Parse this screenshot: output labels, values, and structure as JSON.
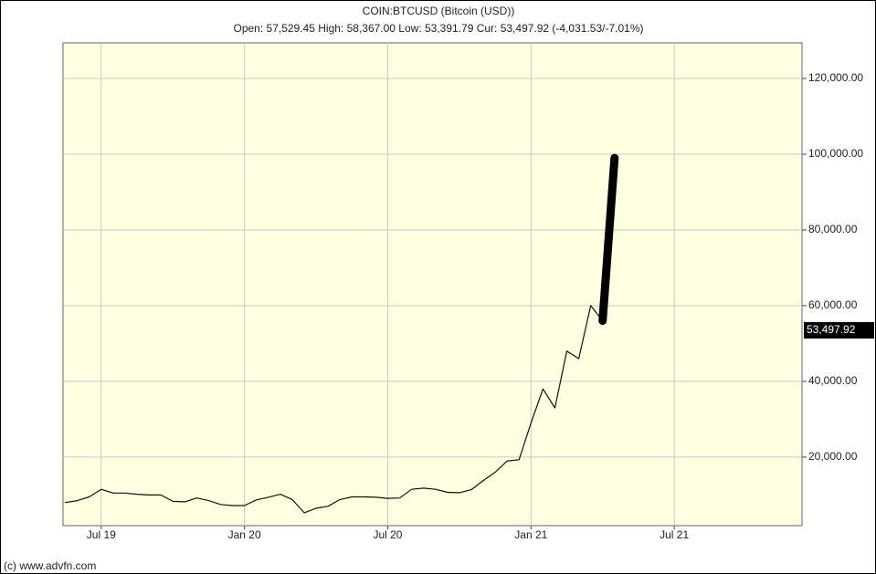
{
  "chart_data": {
    "type": "line",
    "title": "COIN:BTCUSD (Bitcoin (USD))",
    "subtitle": "Open: 57,529.45 High: 58,367.00 Low: 53,391.79 Cur: 53,497.92 (-4,031.53/-7.01%)",
    "footer": "(c) www.advfn.com",
    "categories": [
      null,
      null,
      null,
      "Jul 19",
      null,
      null,
      null,
      null,
      null,
      null,
      null,
      null,
      null,
      null,
      null,
      "Jan 20",
      null,
      null,
      null,
      null,
      null,
      null,
      null,
      null,
      null,
      null,
      null,
      "Jul 20",
      null,
      null,
      null,
      null,
      null,
      null,
      null,
      null,
      null,
      null,
      null,
      "Jan 21",
      null,
      null,
      null,
      null,
      null,
      null,
      null,
      null,
      null,
      null,
      null,
      "Jul 21",
      null,
      null,
      null,
      null,
      null,
      null,
      null,
      null,
      null,
      null
    ],
    "series": [
      {
        "color": "#111111",
        "line_width": 1.2,
        "values": [
          8000,
          8500,
          9500,
          11500,
          10500,
          10500,
          10200,
          10000,
          10000,
          8300,
          8200,
          9200,
          8500,
          7500,
          7200,
          7200,
          8700,
          9400,
          10200,
          8800,
          5300,
          6500,
          7000,
          8800,
          9500,
          9500,
          9400,
          9100,
          9200,
          11500,
          11800,
          11500,
          10700,
          10600,
          11400,
          13800,
          16000,
          19000,
          19300,
          29000,
          38000,
          33000,
          48000,
          46000,
          60000,
          56000,
          null,
          null,
          null,
          null,
          null,
          null,
          null,
          null,
          null,
          null,
          null,
          null,
          null,
          null,
          null,
          null
        ]
      },
      {
        "color": "#000000",
        "line_width": 9,
        "values": [
          null,
          null,
          null,
          null,
          null,
          null,
          null,
          null,
          null,
          null,
          null,
          null,
          null,
          null,
          null,
          null,
          null,
          null,
          null,
          null,
          null,
          null,
          null,
          null,
          null,
          null,
          null,
          null,
          null,
          null,
          null,
          null,
          null,
          null,
          null,
          null,
          null,
          null,
          null,
          null,
          null,
          null,
          null,
          null,
          null,
          56000,
          99000,
          null,
          null,
          null,
          null,
          null,
          null,
          null,
          null,
          null,
          null,
          null,
          null,
          null,
          null,
          null
        ]
      }
    ],
    "current": {
      "value": 53497.92,
      "label": "53,497.92"
    },
    "ylim": [
      1900,
      129400
    ],
    "yticks": [
      {
        "value": 20000,
        "label": "20,000.00"
      },
      {
        "value": 40000,
        "label": "40,000.00"
      },
      {
        "value": 60000,
        "label": "60,000.00"
      },
      {
        "value": 80000,
        "label": "80,000.00"
      },
      {
        "value": 100000,
        "label": "100,000.00"
      },
      {
        "value": 120000,
        "label": "120,000.00"
      }
    ],
    "grid": true,
    "background": "#ffffe1"
  }
}
